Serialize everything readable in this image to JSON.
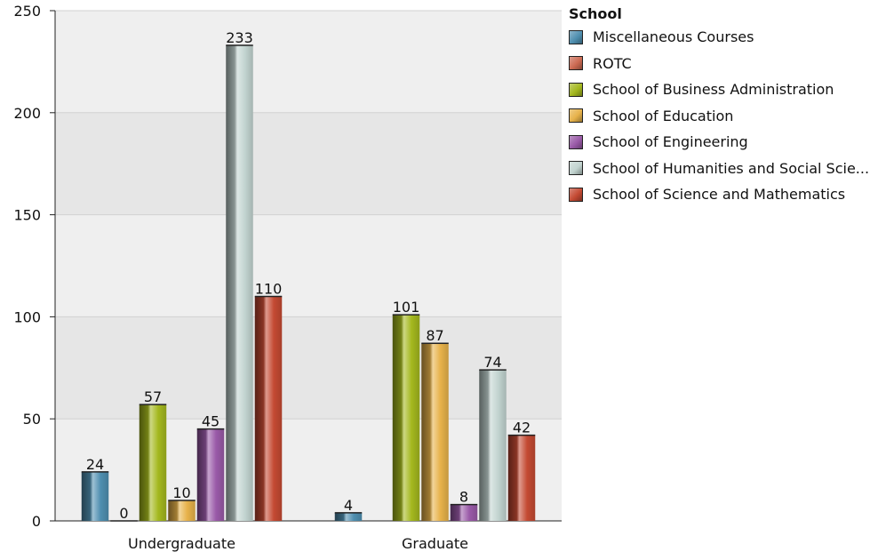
{
  "chart_data": {
    "type": "bar",
    "categories": [
      "Undergraduate",
      "Graduate"
    ],
    "ylim": [
      0,
      250
    ],
    "yticks": [
      0,
      50,
      100,
      150,
      200,
      250
    ],
    "grid": true,
    "legend_title": "School",
    "legend_position": "right",
    "series": [
      {
        "name": "Miscellaneous Courses",
        "color": "#4f8fb0",
        "values": [
          24,
          4
        ]
      },
      {
        "name": "ROTC",
        "color": "#cc6a52",
        "values": [
          0,
          null
        ]
      },
      {
        "name": "School of Business Administration",
        "color": "#a4b81e",
        "values": [
          57,
          101
        ]
      },
      {
        "name": "School of Education",
        "color": "#e7b24a",
        "values": [
          10,
          87
        ]
      },
      {
        "name": "School of Engineering",
        "color": "#9a5aa8",
        "values": [
          45,
          8
        ]
      },
      {
        "name": "School of Humanities and Social Scie...",
        "color": "#c2d4d0",
        "values": [
          233,
          74
        ]
      },
      {
        "name": "School of Science and Mathematics",
        "color": "#c44a33",
        "values": [
          110,
          42
        ]
      }
    ]
  }
}
